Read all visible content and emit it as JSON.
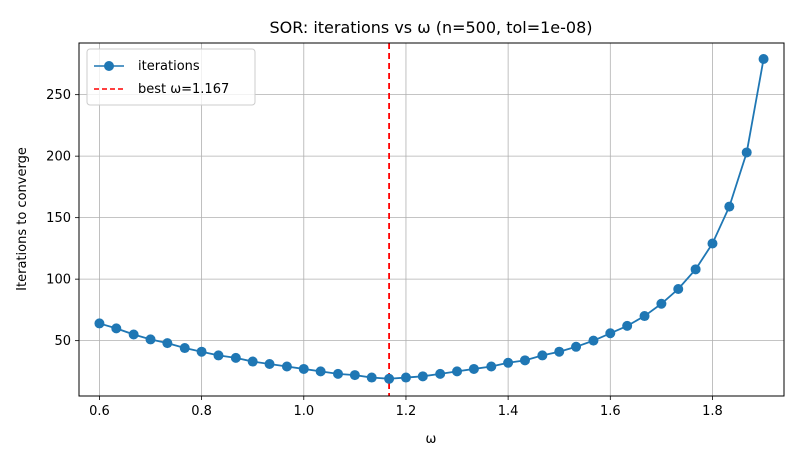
{
  "chart_data": {
    "type": "line",
    "title": "SOR: iterations vs ω (n=500, tol=1e-08)",
    "xlabel": "ω",
    "ylabel": "Iterations to converge",
    "xlim": [
      0.56,
      1.94
    ],
    "ylim": [
      5,
      292
    ],
    "xticks": [
      "0.6",
      "0.8",
      "1.0",
      "1.2",
      "1.4",
      "1.6",
      "1.8"
    ],
    "yticks": [
      "50",
      "100",
      "150",
      "200",
      "250"
    ],
    "xtick_values": [
      0.6,
      0.8,
      1.0,
      1.2,
      1.4,
      1.6,
      1.8
    ],
    "ytick_values": [
      50,
      100,
      150,
      200,
      250
    ],
    "grid": true,
    "legend_position": "upper-left",
    "legend": [
      "iterations",
      "best ω=1.167"
    ],
    "series": [
      {
        "name": "iterations",
        "color": "#1f77b4",
        "marker": "circle",
        "x": [
          0.6,
          0.633,
          0.667,
          0.7,
          0.733,
          0.767,
          0.8,
          0.833,
          0.867,
          0.9,
          0.933,
          0.967,
          1.0,
          1.033,
          1.067,
          1.1,
          1.133,
          1.167,
          1.2,
          1.233,
          1.267,
          1.3,
          1.333,
          1.367,
          1.4,
          1.433,
          1.467,
          1.5,
          1.533,
          1.567,
          1.6,
          1.633,
          1.667,
          1.7,
          1.733,
          1.767,
          1.8,
          1.833,
          1.867,
          1.9
        ],
        "y": [
          64,
          60,
          55,
          51,
          48,
          44,
          41,
          38,
          36,
          33,
          31,
          29,
          27,
          25,
          23,
          22,
          20,
          19,
          20,
          21,
          23,
          25,
          27,
          29,
          32,
          34,
          38,
          41,
          45,
          50,
          56,
          62,
          70,
          80,
          92,
          108,
          129,
          159,
          203,
          279
        ]
      }
    ],
    "reference_lines": [
      {
        "name": "best ω=1.167",
        "x": 1.167,
        "color": "#ff0000",
        "style": "dashed"
      }
    ]
  }
}
